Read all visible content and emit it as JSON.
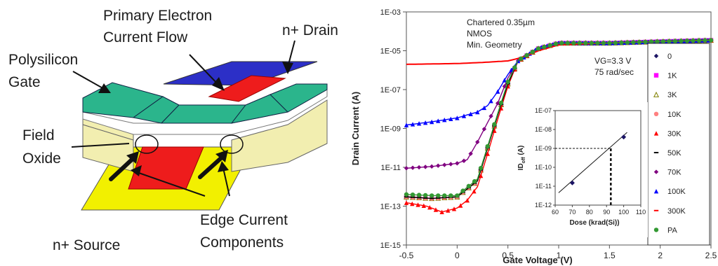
{
  "device": {
    "labels": {
      "primary_flow_line1": "Primary Electron",
      "primary_flow_line2": "Current Flow",
      "drain": "n+ Drain",
      "gate_line1": "Polysilicon",
      "gate_line2": "Gate",
      "oxide_line1": "Field",
      "oxide_line2": "Oxide",
      "source": "n+ Source",
      "edge_line1": "Edge Current",
      "edge_line2": "Components"
    },
    "colors": {
      "gate": "#2bb58c",
      "drain": "#2c2fc7",
      "channel": "#ee1c1c",
      "source": "#f2f000",
      "oxide": "#f2eeb0"
    }
  },
  "chart_data": [
    {
      "type": "scatter",
      "xlabel": "Gate Voltage (V)",
      "ylabel": "Drain Current (A)",
      "yscale": "log",
      "xlim": [
        -0.5,
        2.5
      ],
      "ylim": [
        1e-15,
        0.001
      ],
      "x_ticks": [
        "-0.5",
        "0",
        "0.5",
        "1",
        "1.5",
        "2",
        "2.5"
      ],
      "y_ticks": [
        "1E-15",
        "1E-13",
        "1E-11",
        "1E-09",
        "1E-07",
        "1E-05",
        "1E-03"
      ],
      "annotations": [
        "Chartered 0.35µm",
        "NMOS",
        "Min. Geometry",
        "VG=3.3 V",
        "75 rad/sec"
      ],
      "legend_position": "right",
      "series": [
        {
          "name": "0",
          "color": "#1b1464",
          "marker": "diamond",
          "x": [
            -0.5,
            -0.25,
            0,
            0.2,
            0.3,
            0.4,
            0.5,
            0.6,
            0.8,
            1.0,
            1.5,
            2.0,
            2.5
          ],
          "y": [
            3e-13,
            2.5e-13,
            3e-13,
            2e-12,
            1e-10,
            5e-09,
            2e-07,
            3e-06,
            1.3e-05,
            2.5e-05,
            2.5e-05,
            3e-05,
            3.5e-05
          ]
        },
        {
          "name": "1K",
          "color": "#ff00ff",
          "marker": "square",
          "x": [
            -0.5,
            -0.25,
            0,
            0.2,
            0.3,
            0.4,
            0.5,
            0.6,
            0.8,
            1.0,
            1.5,
            2.0,
            2.5
          ],
          "y": [
            3e-13,
            2.5e-13,
            3e-13,
            2e-12,
            1e-10,
            5e-09,
            2e-07,
            3e-06,
            1.3e-05,
            2.5e-05,
            2.5e-05,
            3e-05,
            3.5e-05
          ]
        },
        {
          "name": "3K",
          "color": "#808000",
          "marker": "triangle-open",
          "x": [
            -0.5,
            -0.25,
            0,
            0.2,
            0.3,
            0.4,
            0.5,
            0.6,
            0.8,
            1.0,
            1.5,
            2.0,
            2.5
          ],
          "y": [
            3e-13,
            2.5e-13,
            3e-13,
            2e-12,
            1e-10,
            5e-09,
            2e-07,
            3e-06,
            1.3e-05,
            2.5e-05,
            2.5e-05,
            3e-05,
            3.5e-05
          ]
        },
        {
          "name": "10K",
          "color": "#ff8080",
          "marker": "circle",
          "x": [
            -0.5,
            -0.25,
            0,
            0.2,
            0.3,
            0.4,
            0.5,
            0.6,
            0.8,
            1.0,
            1.5,
            2.0,
            2.5
          ],
          "y": [
            3e-13,
            2.5e-13,
            3e-13,
            2e-12,
            1e-10,
            5e-09,
            2e-07,
            3e-06,
            1.3e-05,
            2.5e-05,
            2.5e-05,
            3e-05,
            3.5e-05
          ]
        },
        {
          "name": "30K",
          "color": "#ff0000",
          "marker": "triangle",
          "x": [
            -0.5,
            -0.3,
            -0.15,
            0,
            0.1,
            0.2,
            0.3,
            0.4,
            0.5,
            0.6,
            0.8,
            1.0,
            1.5,
            2.0,
            2.5
          ],
          "y": [
            1.5e-13,
            1e-13,
            5e-14,
            8e-14,
            2e-13,
            1e-12,
            5e-11,
            3e-09,
            1.5e-07,
            3e-06,
            1.3e-05,
            2.5e-05,
            2.5e-05,
            3e-05,
            3.5e-05
          ]
        },
        {
          "name": "50K",
          "color": "#000000",
          "marker": "dash",
          "x": [
            -0.5,
            -0.25,
            0,
            0.2,
            0.3,
            0.4,
            0.5,
            0.6,
            0.8,
            1.0,
            1.5,
            2.0,
            2.5
          ],
          "y": [
            3e-13,
            2.5e-13,
            3e-13,
            2e-12,
            1e-10,
            5e-09,
            2e-07,
            3e-06,
            1.3e-05,
            2.5e-05,
            2.5e-05,
            3e-05,
            3.5e-05
          ]
        },
        {
          "name": "70K",
          "color": "#800080",
          "marker": "diamond",
          "x": [
            -0.5,
            -0.25,
            0,
            0.1,
            0.2,
            0.3,
            0.4,
            0.5,
            0.6,
            0.8,
            1.0,
            1.5,
            2.0,
            2.5
          ],
          "y": [
            9e-12,
            1.1e-11,
            1.6e-11,
            2.5e-11,
            2e-10,
            2e-09,
            2e-08,
            4e-07,
            3e-06,
            1.3e-05,
            2.5e-05,
            2.5e-05,
            3e-05,
            3.5e-05
          ]
        },
        {
          "name": "100K",
          "color": "#0000ff",
          "marker": "triangle",
          "x": [
            -0.5,
            -0.25,
            0,
            0.1,
            0.2,
            0.3,
            0.4,
            0.5,
            0.6,
            0.8,
            1.0,
            1.5,
            2.0,
            2.5
          ],
          "y": [
            1.5e-09,
            2.2e-09,
            3.5e-09,
            5e-09,
            7e-09,
            1.5e-08,
            8e-08,
            6e-07,
            3e-06,
            1.4e-05,
            2.5e-05,
            2.5e-05,
            3e-05,
            3.5e-05
          ]
        },
        {
          "name": "300K",
          "color": "#ff0000",
          "marker": "dash",
          "x": [
            -0.5,
            0,
            0.25,
            0.5,
            0.6,
            0.7,
            0.8,
            1.0,
            1.5,
            2.0,
            2.5
          ],
          "y": [
            2e-06,
            2.2e-06,
            2.5e-06,
            3e-06,
            4e-06,
            6e-06,
            1e-05,
            2e-05,
            2.5e-05,
            3e-05,
            3.5e-05
          ]
        },
        {
          "name": "PA",
          "color": "#339933",
          "marker": "circle",
          "x": [
            -0.5,
            -0.25,
            0,
            0.2,
            0.3,
            0.4,
            0.5,
            0.6,
            0.8,
            1.0,
            1.5,
            2.0,
            2.5
          ],
          "y": [
            4e-13,
            3.5e-13,
            3.5e-13,
            2.5e-12,
            1.2e-10,
            6e-09,
            2.5e-07,
            3.2e-06,
            1.3e-05,
            2.5e-05,
            2.5e-05,
            3e-05,
            3.5e-05
          ]
        }
      ]
    },
    {
      "type": "line",
      "xlabel": "Dose (krad(Si))",
      "ylabel_main": "ID",
      "ylabel_sub": "off",
      "ylabel_unit": " (A)",
      "yscale": "log",
      "xlim": [
        60,
        110
      ],
      "ylim": [
        1e-12,
        1e-07
      ],
      "x_ticks": [
        "60",
        "70",
        "80",
        "90",
        "100",
        "110"
      ],
      "y_ticks": [
        "1E-12",
        "1E-11",
        "1E-10",
        "1E-09",
        "1E-08",
        "1E-07"
      ],
      "points": {
        "x": [
          70,
          100
        ],
        "y": [
          1.5e-11,
          4e-09
        ]
      },
      "fit_line": {
        "x": [
          62,
          102
        ],
        "y": [
          4.5e-12,
          7e-09
        ]
      },
      "reference": {
        "x": 92.5,
        "y": 1e-09
      }
    }
  ]
}
